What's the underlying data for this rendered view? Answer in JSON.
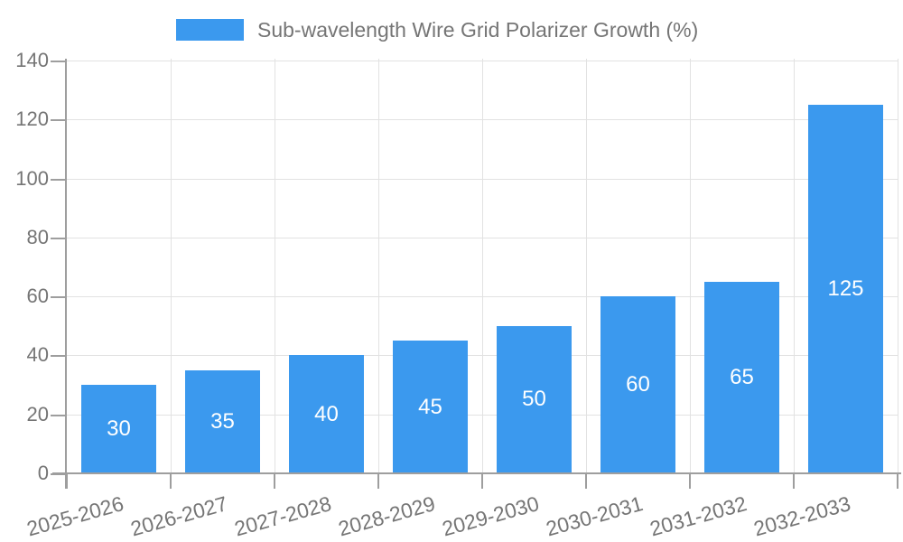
{
  "chart_data": {
    "type": "bar",
    "title": "Sub-wavelength Wire Grid Polarizer Growth (%)",
    "legend_position": "top",
    "series": [
      {
        "name": "Sub-wavelength Wire Grid Polarizer Growth (%)",
        "values": [
          30,
          35,
          40,
          45,
          50,
          60,
          65,
          125
        ]
      }
    ],
    "categories": [
      "2025-2026",
      "2026-2027",
      "2027-2028",
      "2028-2029",
      "2029-2030",
      "2030-2031",
      "2031-2032",
      "2032-2033"
    ],
    "xlabel": "",
    "ylabel": "",
    "ylim": [
      0,
      140
    ],
    "yticks": [
      0,
      20,
      40,
      60,
      80,
      100,
      120,
      140
    ],
    "grid": true,
    "bar_labels_shown": true,
    "colors": {
      "bar": "#3B99EE",
      "bar_label": "#FFFFFF",
      "axis_text": "#757575",
      "grid_line": "#E2E2E2",
      "axis_line": "#9E9E9E",
      "background": "#FFFFFF"
    }
  }
}
